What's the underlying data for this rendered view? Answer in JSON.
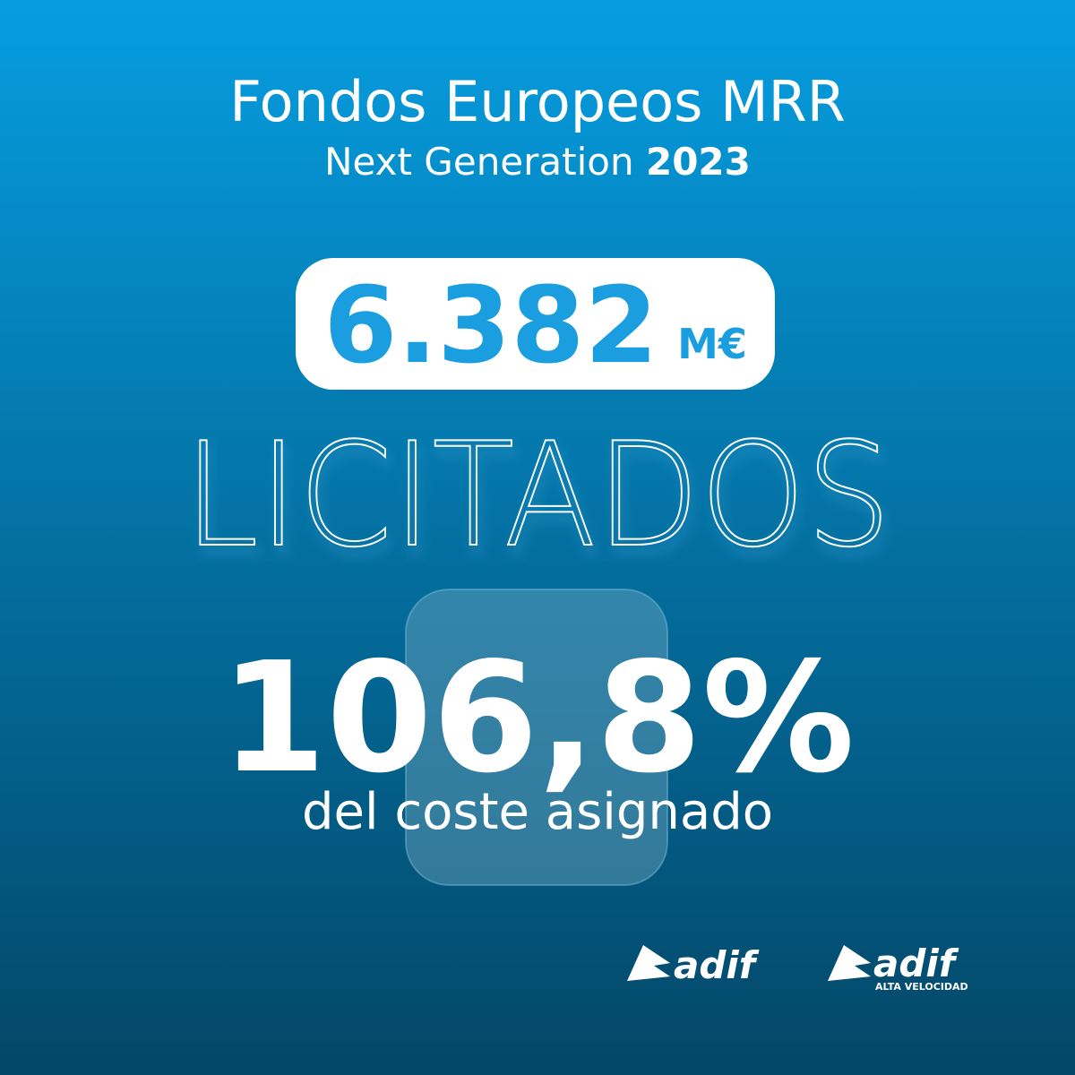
{
  "header": {
    "title": "Fondos Europeos MRR",
    "subtitle": "Next Generation",
    "year": "2023"
  },
  "highlight": {
    "amount": "6.382",
    "unit": "M€"
  },
  "headline": "LICITADOS",
  "stat": {
    "value": "106,8%",
    "caption": "del coste asignado"
  },
  "logos": [
    {
      "name": "adif"
    },
    {
      "name": "adif",
      "tagline": "ALTA VELOCIDAD"
    }
  ]
}
